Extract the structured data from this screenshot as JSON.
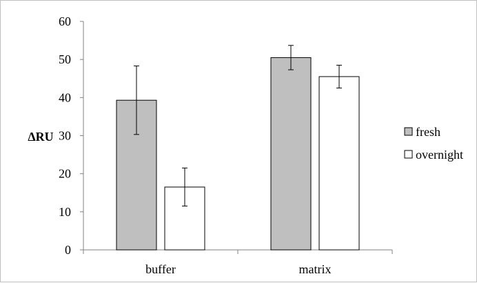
{
  "chart_data": {
    "type": "bar",
    "categories": [
      "buffer",
      "matrix"
    ],
    "series": [
      {
        "name": "fresh",
        "values": [
          39.3,
          50.5
        ],
        "errors": [
          9.0,
          3.2
        ],
        "color": "#bfbfbf"
      },
      {
        "name": "overnight",
        "values": [
          16.5,
          45.5
        ],
        "errors": [
          5.0,
          3.0
        ],
        "color": "#ffffff"
      }
    ],
    "ylabel": "ΔRU",
    "xlabel": "",
    "title": "",
    "ylim": [
      0,
      60
    ],
    "yticks": [
      "0",
      "10",
      "20",
      "30",
      "40",
      "50",
      "60"
    ],
    "error_bars": true,
    "grid": false,
    "legend_position": "right"
  }
}
